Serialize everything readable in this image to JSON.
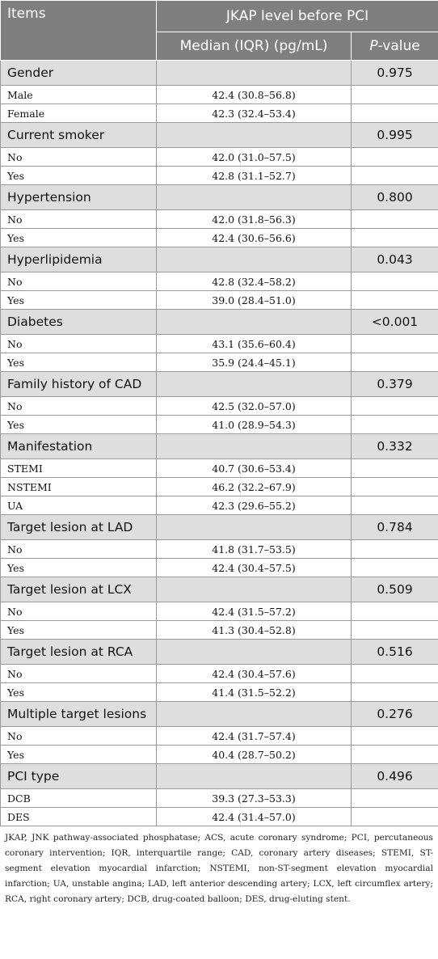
{
  "header": {
    "items": "Items",
    "group_title": "JKAP level before PCI",
    "median_label": "Median (IQR) (pg/mL)",
    "p_label_italic": "P",
    "p_label_rest": "-value"
  },
  "groups": [
    {
      "name": "Gender",
      "p": "0.975",
      "rows": [
        {
          "label": "Male",
          "median": "42.4 (30.8–56.8)"
        },
        {
          "label": "Female",
          "median": "42.3 (32.4–53.4)"
        }
      ]
    },
    {
      "name": "Current smoker",
      "p": "0.995",
      "rows": [
        {
          "label": "No",
          "median": "42.0 (31.0–57.5)"
        },
        {
          "label": "Yes",
          "median": "42.8 (31.1–52.7)"
        }
      ]
    },
    {
      "name": "Hypertension",
      "p": "0.800",
      "rows": [
        {
          "label": "No",
          "median": "42.0 (31.8–56.3)"
        },
        {
          "label": "Yes",
          "median": "42.4 (30.6–56.6)"
        }
      ]
    },
    {
      "name": "Hyperlipidemia",
      "p": "0.043",
      "rows": [
        {
          "label": "No",
          "median": "42.8 (32.4–58.2)"
        },
        {
          "label": "Yes",
          "median": "39.0 (28.4–51.0)"
        }
      ]
    },
    {
      "name": "Diabetes",
      "p": "<0.001",
      "rows": [
        {
          "label": "No",
          "median": "43.1 (35.6–60.4)"
        },
        {
          "label": "Yes",
          "median": "35.9 (24.4–45.1)"
        }
      ]
    },
    {
      "name": "Family history of CAD",
      "p": "0.379",
      "rows": [
        {
          "label": "No",
          "median": "42.5 (32.0–57.0)"
        },
        {
          "label": "Yes",
          "median": "41.0 (28.9–54.3)"
        }
      ]
    },
    {
      "name": "Manifestation",
      "p": "0.332",
      "rows": [
        {
          "label": "STEMI",
          "median": "40.7 (30.6–53.4)"
        },
        {
          "label": "NSTEMI",
          "median": "46.2 (32.2–67.9)"
        },
        {
          "label": "UA",
          "median": "42.3 (29.6–55.2)"
        }
      ]
    },
    {
      "name": "Target lesion at LAD",
      "p": "0.784",
      "rows": [
        {
          "label": "No",
          "median": "41.8 (31.7–53.5)"
        },
        {
          "label": "Yes",
          "median": "42.4 (30.4–57.5)"
        }
      ]
    },
    {
      "name": "Target lesion at LCX",
      "p": "0.509",
      "rows": [
        {
          "label": "No",
          "median": "42.4 (31.5–57.2)"
        },
        {
          "label": "Yes",
          "median": "41.3 (30.4–52.8)"
        }
      ]
    },
    {
      "name": "Target lesion at RCA",
      "p": "0.516",
      "rows": [
        {
          "label": "No",
          "median": "42.4 (30.4–57.6)"
        },
        {
          "label": "Yes",
          "median": "41.4 (31.5–52.2)"
        }
      ]
    },
    {
      "name": "Multiple target lesions",
      "p": "0.276",
      "rows": [
        {
          "label": "No",
          "median": "42.4 (31.7–57.4)"
        },
        {
          "label": "Yes",
          "median": "40.4 (28.7–50.2)"
        }
      ]
    },
    {
      "name": "PCI type",
      "p": "0.496",
      "rows": [
        {
          "label": "DCB",
          "median": "39.3 (27.3–53.3)"
        },
        {
          "label": "DES",
          "median": "42.4 (31.4–57.0)"
        }
      ]
    }
  ],
  "footnote": "JKAP, JNK pathway-associated phosphatase; ACS, acute coronary syndrome; PCI, percutaneous coronary intervention; IQR, interquartile range; CAD, coronary artery diseases; STEMI, ST-segment elevation myocardial infarction; NSTEMI, non-ST-segment elevation myocardial infarction; UA, unstable angina; LAD, left anterior descending artery; LCX, left circumflex artery; RCA, right coronary artery; DCB, drug-coated balloon; DES, drug-eluting stent."
}
